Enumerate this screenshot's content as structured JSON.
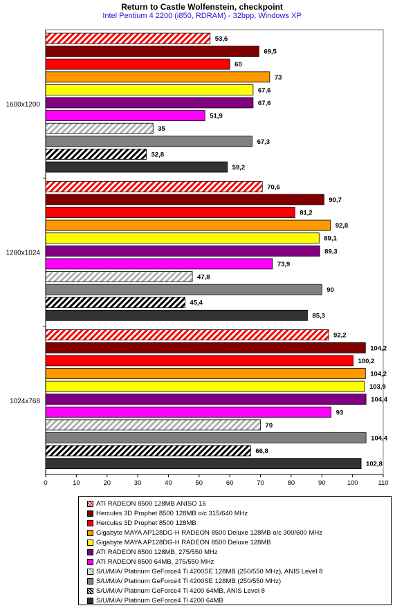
{
  "title": "Return to Castle Wolfenstein, checkpoint",
  "subtitle": "Intel Pentium 4 2200 (i850, RDRAM) - 32bpp, Windows XP",
  "chart_data": {
    "type": "bar",
    "orientation": "horizontal",
    "categories": [
      "1600x1200",
      "1280x1024",
      "1024x768"
    ],
    "xlim": [
      0,
      110
    ],
    "xticks": [
      0,
      10,
      20,
      30,
      40,
      50,
      60,
      70,
      80,
      90,
      100,
      110
    ],
    "grid": false,
    "legend_position": "bottom",
    "series": [
      {
        "name": "ATI RADEON 8500 128MB ANISO 16",
        "color": "#ff0000",
        "pattern": "hatch-red",
        "values": [
          53.6,
          70.6,
          92.2
        ],
        "labels": [
          "53,6",
          "70,6",
          "92,2"
        ]
      },
      {
        "name": "Hercules 3D Prophet 8500 128MB o/c 315/640 MHz",
        "color": "#800000",
        "pattern": "solid",
        "values": [
          69.5,
          90.7,
          104.2
        ],
        "labels": [
          "69,5",
          "90,7",
          "104,2"
        ]
      },
      {
        "name": "Hercules 3D Prophet 8500 128MB",
        "color": "#ff0000",
        "pattern": "solid",
        "values": [
          60,
          81.2,
          100.2
        ],
        "labels": [
          "60",
          "81,2",
          "100,2"
        ]
      },
      {
        "name": "Gigabyte MAYA AP128DG-H RADEON 8500 Deluxe 128MB o/c 300/600 MHz",
        "color": "#ff9900",
        "pattern": "solid",
        "values": [
          73,
          92.8,
          104.2
        ],
        "labels": [
          "73",
          "92,8",
          "104,2"
        ]
      },
      {
        "name": "Gigabyte MAYA AP128DG-H RADEON 8500 Deluxe 128MB",
        "color": "#ffff00",
        "pattern": "solid",
        "values": [
          67.6,
          89.1,
          103.9
        ],
        "labels": [
          "67,6",
          "89,1",
          "103,9"
        ]
      },
      {
        "name": "ATI RADEON 8500 128MB, 275/550 MHz",
        "color": "#800080",
        "pattern": "solid",
        "values": [
          67.6,
          89.3,
          104.4
        ],
        "labels": [
          "67,6",
          "89,3",
          "104,4"
        ]
      },
      {
        "name": "ATI RADEON 8500 64MB, 275/550 MHz",
        "color": "#ff00ff",
        "pattern": "solid",
        "values": [
          51.9,
          73.9,
          93
        ],
        "labels": [
          "51,9",
          "73,9",
          "93"
        ]
      },
      {
        "name": "S/U/M/A/ Platinum GeForce4 Ti 4200SE 128MB (250/550 MHz), ANIS Level 8",
        "color": "#c0c0c0",
        "pattern": "hatch-gray",
        "values": [
          35,
          47.8,
          70
        ],
        "labels": [
          "35",
          "47,8",
          "70"
        ]
      },
      {
        "name": "S/U/M/A/ Platinum GeForce4 Ti 4200SE 128MB (250/550 MHz)",
        "color": "#808080",
        "pattern": "solid",
        "values": [
          67.3,
          90,
          104.4
        ],
        "labels": [
          "67,3",
          "90",
          "104,4"
        ]
      },
      {
        "name": "S/U/M/A/ Platinum GeForce4 Ti 4200 64MB, ANIS Level 8",
        "color": "#000000",
        "pattern": "hatch-black",
        "values": [
          32.8,
          45.4,
          66.8
        ],
        "labels": [
          "32,8",
          "45,4",
          "66,8"
        ]
      },
      {
        "name": "S/U/M/A/ Platinum GeForce4 Ti 4200 64MB",
        "color": "#333333",
        "pattern": "solid",
        "values": [
          59.2,
          85.3,
          102.8
        ],
        "labels": [
          "59,2",
          "85,3",
          "102,8"
        ]
      }
    ]
  }
}
